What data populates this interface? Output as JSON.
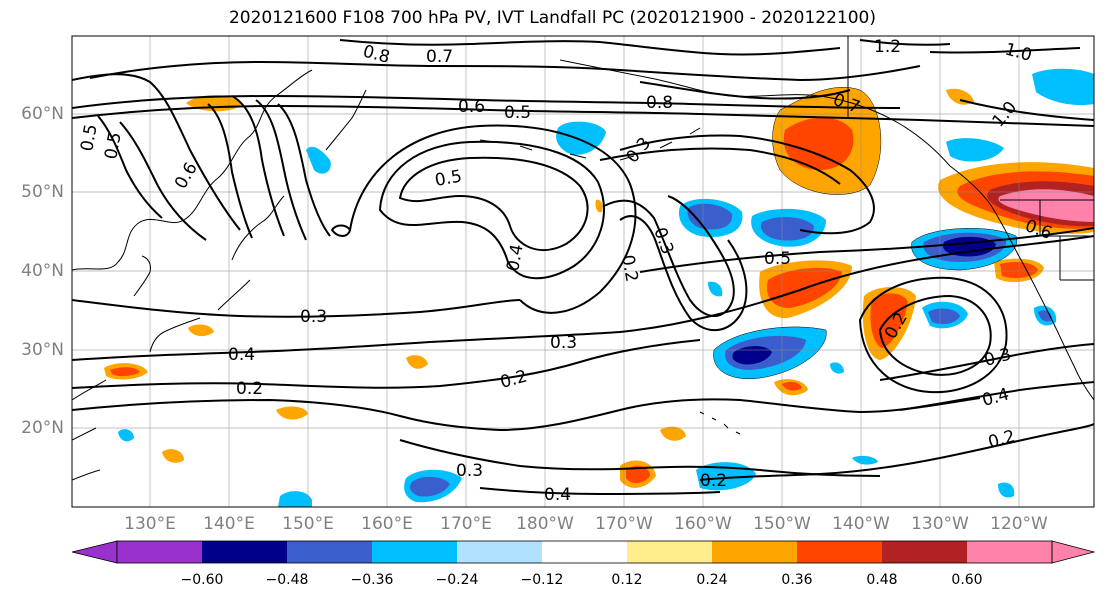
{
  "title": "2020121600 F108 700 hPa PV, IVT Landfall PC (2020121900 - 2020122100)",
  "lat_labels": [
    "60°N",
    "50°N",
    "40°N",
    "30°N",
    "20°N"
  ],
  "lon_labels": [
    "130°E",
    "140°E",
    "150°E",
    "160°E",
    "170°E",
    "180°W",
    "170°W",
    "160°W",
    "150°W",
    "140°W",
    "130°W",
    "120°W"
  ],
  "contour_labels": [
    "0.8",
    "0.7",
    "1.2",
    "1.0",
    "0.6",
    "0.5",
    "0.8",
    "0.7",
    "1.0",
    "0.5",
    "0.5",
    "0.6",
    "0.3",
    "0.5",
    "0.3",
    "0.2",
    "0.4",
    "0.5",
    "0.3",
    "0.4",
    "0.3",
    "0.2",
    "0.2",
    "0.3",
    "0.4",
    "0.2",
    "0.3",
    "0.4",
    "0.2",
    "0.2",
    "0.6"
  ],
  "colorbar": {
    "levels": [
      "−0.60",
      "−0.48",
      "−0.36",
      "−0.24",
      "−0.12",
      "0.12",
      "0.24",
      "0.36",
      "0.48",
      "0.60"
    ],
    "colors": [
      "#9932cc",
      "#00008b",
      "#3a5fcd",
      "#00bfff",
      "#b0e2ff",
      "#ffffff",
      "#ffec8b",
      "#ffa500",
      "#ff4500",
      "#b22222",
      "#ff82ab"
    ]
  }
}
